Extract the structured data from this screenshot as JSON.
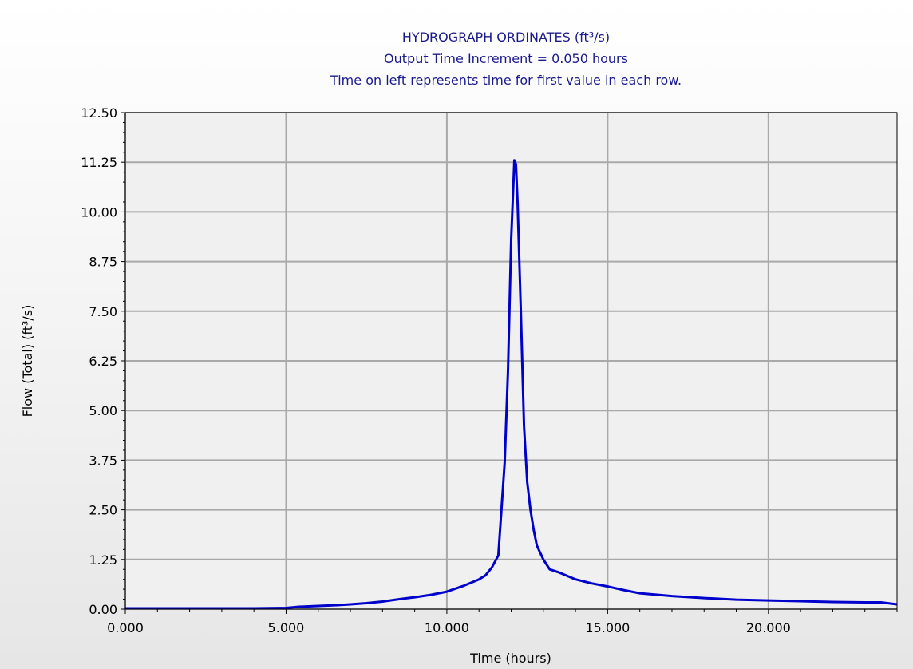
{
  "chart_data": {
    "type": "line",
    "title_lines": [
      "HYDROGRAPH ORDINATES (ft³/s)",
      "Output Time Increment = 0.050 hours",
      "Time on left represents time for first value in each row."
    ],
    "xlabel": "Time (hours)",
    "ylabel": "Flow (Total) (ft³/s)",
    "xlim": [
      0,
      24
    ],
    "ylim": [
      0,
      12.5
    ],
    "x_ticks": [
      0,
      5,
      10,
      15,
      20
    ],
    "x_tick_labels": [
      "0.000",
      "5.000",
      "10.000",
      "15.000",
      "20.000"
    ],
    "y_ticks": [
      0,
      1.25,
      2.5,
      3.75,
      5,
      6.25,
      7.5,
      8.75,
      10,
      11.25,
      12.5
    ],
    "y_tick_labels": [
      "0.00",
      "1.25",
      "2.50",
      "3.75",
      "5.00",
      "6.25",
      "7.50",
      "8.75",
      "10.00",
      "11.25",
      "12.50"
    ],
    "grid": true,
    "line_color": "#0000cc",
    "grid_color": "#a9a9a9",
    "series": [
      {
        "x": [
          0,
          2,
          4,
          5,
          5.4,
          6,
          6.6,
          7,
          7.5,
          8,
          8.5,
          9,
          9.5,
          10,
          10.5,
          11,
          11.2,
          11.4,
          11.6,
          11.8,
          11.9,
          12.0,
          12.05,
          12.1,
          12.15,
          12.2,
          12.3,
          12.4,
          12.5,
          12.6,
          12.7,
          12.8,
          13.0,
          13.2,
          13.5,
          14,
          14.5,
          15,
          15.5,
          16,
          17,
          18,
          19,
          20,
          21,
          22,
          23,
          23.5,
          24
        ],
        "y": [
          0.02,
          0.02,
          0.02,
          0.03,
          0.06,
          0.08,
          0.1,
          0.12,
          0.15,
          0.19,
          0.25,
          0.3,
          0.36,
          0.44,
          0.58,
          0.75,
          0.85,
          1.05,
          1.35,
          3.7,
          6.0,
          9.3,
          10.3,
          11.3,
          11.2,
          10.2,
          7.5,
          4.6,
          3.2,
          2.5,
          2.0,
          1.6,
          1.25,
          1.0,
          0.92,
          0.75,
          0.65,
          0.57,
          0.48,
          0.4,
          0.33,
          0.28,
          0.24,
          0.22,
          0.2,
          0.18,
          0.17,
          0.17,
          0.12
        ]
      }
    ]
  }
}
